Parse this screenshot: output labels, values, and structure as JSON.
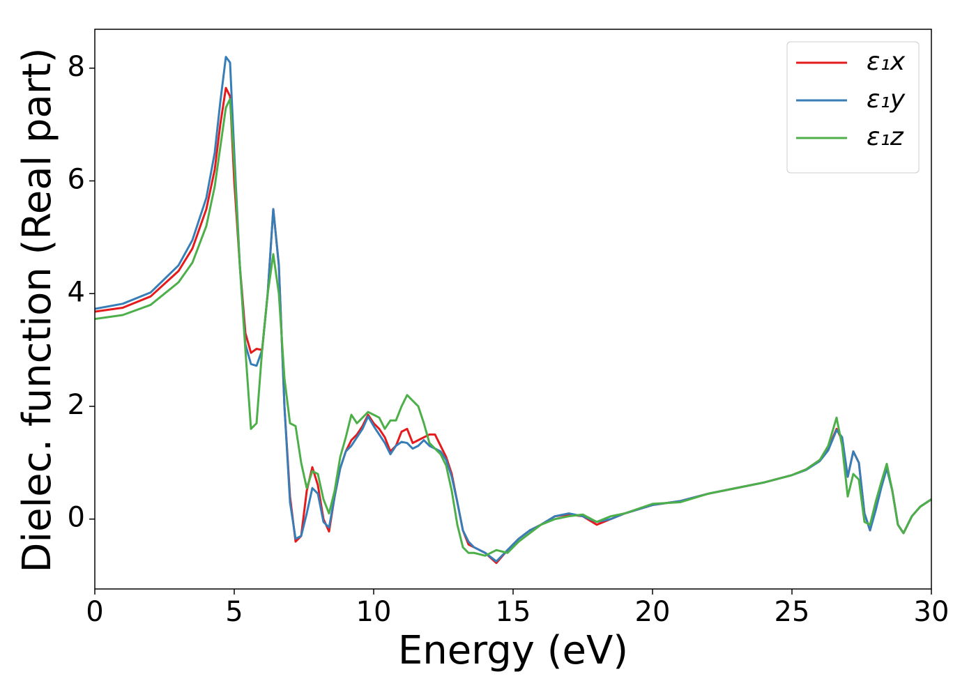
{
  "chart_data": {
    "type": "line",
    "xlabel": "Energy (eV)",
    "ylabel": "Dielec. function (Real part)",
    "x": [
      0,
      1,
      2,
      3,
      3.5,
      4,
      4.3,
      4.5,
      4.7,
      4.85,
      5,
      5.2,
      5.4,
      5.6,
      5.8,
      6,
      6.2,
      6.4,
      6.6,
      6.8,
      7,
      7.2,
      7.4,
      7.6,
      7.8,
      8,
      8.2,
      8.4,
      8.6,
      8.8,
      9,
      9.2,
      9.4,
      9.6,
      9.8,
      10,
      10.2,
      10.4,
      10.6,
      10.8,
      11,
      11.2,
      11.4,
      11.6,
      11.8,
      12,
      12.2,
      12.4,
      12.6,
      12.8,
      13,
      13.2,
      13.4,
      13.6,
      14,
      14.4,
      14.8,
      15.2,
      15.6,
      16,
      16.5,
      17,
      17.5,
      18,
      18.5,
      19,
      20,
      21,
      22,
      23,
      24,
      25,
      25.5,
      26,
      26.3,
      26.6,
      26.8,
      27,
      27.2,
      27.4,
      27.6,
      27.8,
      28,
      28.2,
      28.4,
      28.6,
      28.8,
      29,
      29.3,
      29.6,
      30
    ],
    "series": [
      {
        "name": "ε₁x",
        "color": "#e41a1c",
        "values": [
          3.68,
          3.75,
          3.95,
          4.4,
          4.8,
          5.5,
          6.2,
          7.0,
          7.65,
          7.5,
          6.0,
          4.5,
          3.3,
          2.95,
          3.02,
          3.0,
          4.0,
          5.5,
          4.5,
          2.0,
          0.4,
          -0.4,
          -0.3,
          0.5,
          0.92,
          0.6,
          0,
          -0.22,
          0.4,
          0.9,
          1.2,
          1.4,
          1.5,
          1.65,
          1.85,
          1.7,
          1.6,
          1.45,
          1.2,
          1.3,
          1.55,
          1.6,
          1.35,
          1.4,
          1.45,
          1.5,
          1.5,
          1.3,
          1.1,
          0.8,
          0.3,
          -0.2,
          -0.45,
          -0.5,
          -0.6,
          -0.78,
          -0.55,
          -0.35,
          -0.2,
          -0.1,
          0.05,
          0.08,
          0.05,
          -0.1,
          0.0,
          0.1,
          0.25,
          0.32,
          0.45,
          0.55,
          0.65,
          0.78,
          0.88,
          1.05,
          1.25,
          1.6,
          1.4,
          0.75,
          1.2,
          1.0,
          0.1,
          -0.2,
          0.2,
          0.6,
          0.95,
          0.5,
          -0.1,
          -0.25,
          0.05,
          0.22,
          0.35
        ]
      },
      {
        "name": "ε₁y",
        "color": "#377eb8",
        "values": [
          3.73,
          3.82,
          4.02,
          4.5,
          4.95,
          5.7,
          6.5,
          7.4,
          8.2,
          8.1,
          6.5,
          4.5,
          3.1,
          2.75,
          2.72,
          3.0,
          4.0,
          5.5,
          4.5,
          2.0,
          0.3,
          -0.35,
          -0.3,
          0.1,
          0.55,
          0.45,
          -0.05,
          -0.15,
          0.4,
          0.9,
          1.2,
          1.3,
          1.45,
          1.6,
          1.82,
          1.65,
          1.5,
          1.35,
          1.15,
          1.3,
          1.37,
          1.35,
          1.25,
          1.3,
          1.4,
          1.3,
          1.25,
          1.2,
          1.05,
          0.75,
          0.3,
          -0.2,
          -0.4,
          -0.5,
          -0.6,
          -0.75,
          -0.55,
          -0.35,
          -0.2,
          -0.1,
          0.05,
          0.1,
          0.05,
          -0.05,
          0.0,
          0.1,
          0.25,
          0.32,
          0.45,
          0.55,
          0.65,
          0.78,
          0.87,
          1.03,
          1.22,
          1.58,
          1.45,
          0.75,
          1.2,
          1.0,
          0.1,
          -0.2,
          0.15,
          0.55,
          0.9,
          0.5,
          -0.1,
          -0.25,
          0.05,
          0.22,
          0.35
        ]
      },
      {
        "name": "ε₁z",
        "color": "#4daf4a",
        "values": [
          3.55,
          3.62,
          3.8,
          4.2,
          4.55,
          5.2,
          5.9,
          6.6,
          7.3,
          7.45,
          6.3,
          4.5,
          3.0,
          1.6,
          1.7,
          3.0,
          4.0,
          4.7,
          4.0,
          2.5,
          1.7,
          1.65,
          1.0,
          0.55,
          0.85,
          0.8,
          0.35,
          0.1,
          0.5,
          1.1,
          1.45,
          1.85,
          1.7,
          1.8,
          1.9,
          1.85,
          1.8,
          1.6,
          1.75,
          1.75,
          2.0,
          2.2,
          2.1,
          2.0,
          1.7,
          1.35,
          1.25,
          1.15,
          0.95,
          0.5,
          -0.1,
          -0.5,
          -0.6,
          -0.6,
          -0.65,
          -0.55,
          -0.6,
          -0.4,
          -0.25,
          -0.1,
          0.0,
          0.05,
          0.08,
          -0.05,
          0.05,
          0.1,
          0.27,
          0.3,
          0.45,
          0.55,
          0.65,
          0.78,
          0.88,
          1.05,
          1.3,
          1.8,
          1.3,
          0.4,
          0.8,
          0.7,
          -0.05,
          -0.1,
          0.3,
          0.65,
          0.98,
          0.5,
          -0.1,
          -0.25,
          0.05,
          0.22,
          0.35
        ]
      }
    ],
    "xlim": [
      0,
      30
    ],
    "xticks": [
      0,
      5,
      10,
      15,
      20,
      25,
      30
    ],
    "ylim": [
      -1.24,
      8.69
    ],
    "yticks": [
      0,
      2,
      4,
      6,
      8
    ],
    "legend": "upper right"
  }
}
